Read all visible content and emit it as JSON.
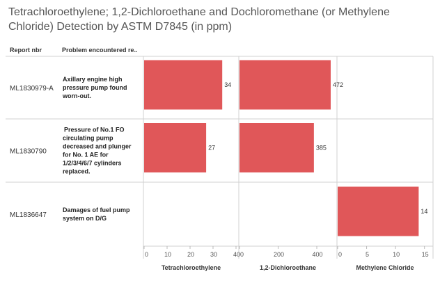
{
  "title": "Tetrachloroethylene; 1,2-Dichloroethane and Dochloromethane (or Methylene Chloride) Detection by ASTM D7845 (in ppm)",
  "headers": {
    "report": "Report nbr",
    "problem": "Problem encountered re.."
  },
  "chart_data": {
    "type": "bar",
    "orientation": "horizontal",
    "title": "Tetrachloroethylene; 1,2-Dichloroethane and Dochloromethane (or Methylene Chloride) Detection by ASTM D7845 (in ppm)",
    "bar_color": "#e05759",
    "rows": [
      {
        "report": "ML1830979-A",
        "problem": [
          "Axillary engine high",
          "pressure pump found",
          "worn-out."
        ]
      },
      {
        "report": "ML1830790",
        "problem": [
          " Pressure of No.1 FO",
          "circulating pump",
          "decreased and plunger",
          "for No. 1 AE for",
          "1/2/3/4/6/7 cylinders",
          "replaced."
        ]
      },
      {
        "report": "ML1836647",
        "problem": [
          "Damages of fuel pump",
          "system on D/G"
        ]
      }
    ],
    "panels": [
      {
        "xlabel": "Tetrachloroethylene",
        "xlim": [
          0,
          40
        ],
        "ticks": [
          0,
          10,
          20,
          30,
          40
        ],
        "values": [
          34,
          27,
          null
        ]
      },
      {
        "xlabel": "1,2-Dichloroethane",
        "xlim": [
          0,
          490
        ],
        "ticks": [
          0,
          200,
          400
        ],
        "values": [
          472,
          385,
          null
        ]
      },
      {
        "xlabel": "Methylene Chloride",
        "xlim": [
          0,
          16
        ],
        "ticks": [
          0,
          5,
          10,
          15
        ],
        "values": [
          null,
          null,
          14
        ]
      }
    ],
    "grid": false,
    "legend": "none"
  }
}
